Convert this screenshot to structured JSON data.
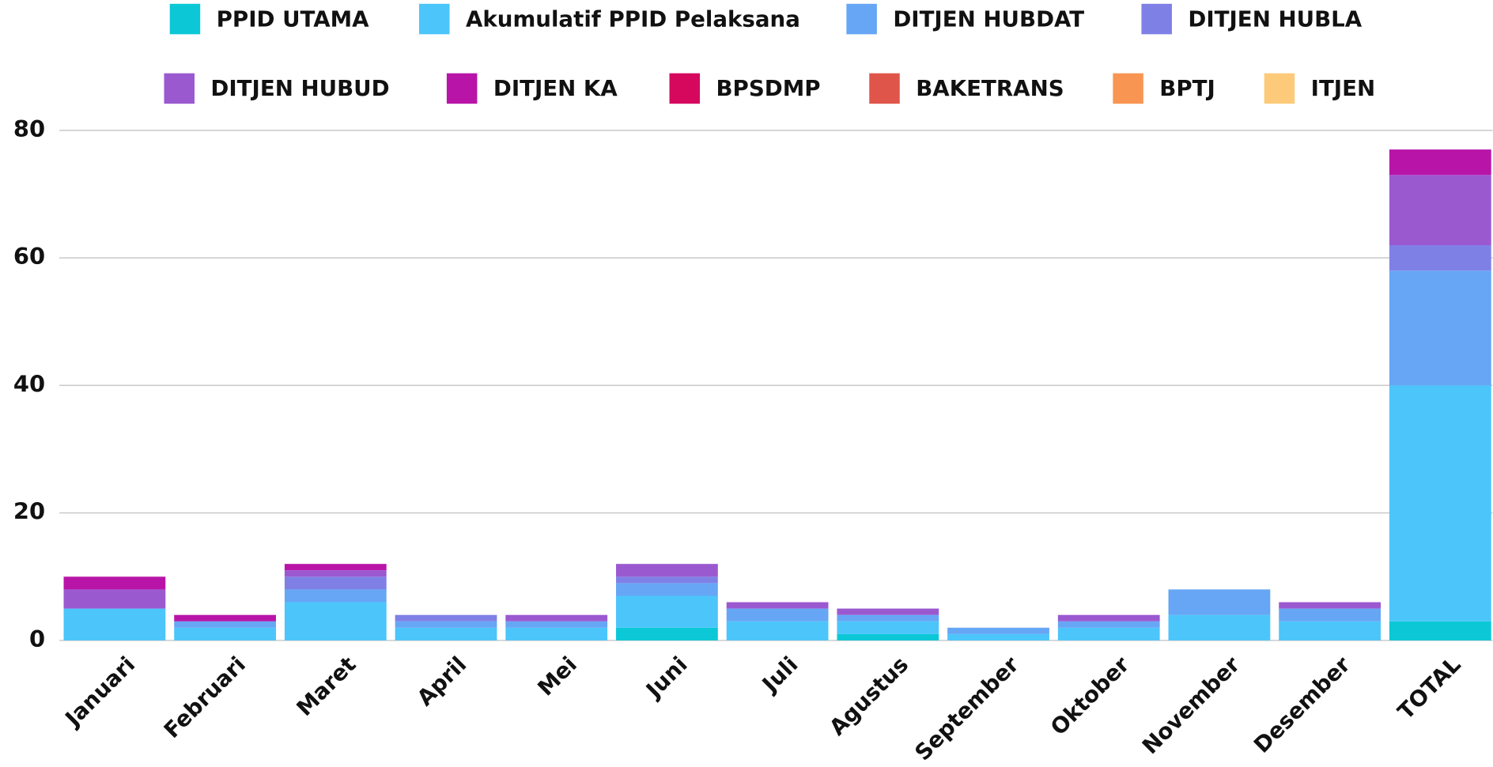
{
  "chart_data": {
    "type": "stacked_bar",
    "categories": [
      "Januari",
      "Februari",
      "Maret",
      "April",
      "Mei",
      "Juni",
      "Juli",
      "Agustus",
      "September",
      "Oktober",
      "November",
      "Desember",
      "TOTAL"
    ],
    "series": [
      {
        "name": "PPID UTAMA",
        "color": "#0cc8d6",
        "values": [
          0,
          0,
          0,
          0,
          0,
          2,
          0,
          1,
          0,
          0,
          0,
          0,
          3
        ]
      },
      {
        "name": "Akumulatif PPID Pelaksana",
        "color": "#4cc5fb",
        "values": [
          5,
          2,
          6,
          2,
          2,
          5,
          3,
          2,
          1,
          2,
          4,
          3,
          37
        ]
      },
      {
        "name": "DITJEN HUBDAT",
        "color": "#66a6f5",
        "values": [
          0,
          1,
          2,
          1,
          1,
          2,
          2,
          1,
          1,
          1,
          4,
          2,
          18
        ]
      },
      {
        "name": "DITJEN HUBLA",
        "color": "#7f80e6",
        "values": [
          0,
          0,
          2,
          1,
          0,
          1,
          0,
          0,
          0,
          0,
          0,
          0,
          4
        ]
      },
      {
        "name": "DITJEN HUBUD",
        "color": "#9b59d0",
        "values": [
          3,
          0,
          1,
          0,
          1,
          2,
          1,
          1,
          0,
          1,
          0,
          1,
          11
        ]
      },
      {
        "name": "DITJEN KA",
        "color": "#b815a8",
        "values": [
          2,
          1,
          1,
          0,
          0,
          0,
          0,
          0,
          0,
          0,
          0,
          0,
          4
        ]
      },
      {
        "name": "BPSDMP",
        "color": "#d5085e",
        "values": [
          0,
          0,
          0,
          0,
          0,
          0,
          0,
          0,
          0,
          0,
          0,
          0,
          0
        ]
      },
      {
        "name": "BAKETRANS",
        "color": "#e0554a",
        "values": [
          0,
          0,
          0,
          0,
          0,
          0,
          0,
          0,
          0,
          0,
          0,
          0,
          0
        ]
      },
      {
        "name": "BPTJ",
        "color": "#f99552",
        "values": [
          0,
          0,
          0,
          0,
          0,
          0,
          0,
          0,
          0,
          0,
          0,
          0,
          0
        ]
      },
      {
        "name": "ITJEN",
        "color": "#fdca7a",
        "values": [
          0,
          0,
          0,
          0,
          0,
          0,
          0,
          0,
          0,
          0,
          0,
          0,
          0
        ]
      }
    ],
    "ylim": [
      0,
      80
    ],
    "yticks": [
      0,
      20,
      40,
      60,
      80
    ],
    "grid": true,
    "legend": "top"
  }
}
